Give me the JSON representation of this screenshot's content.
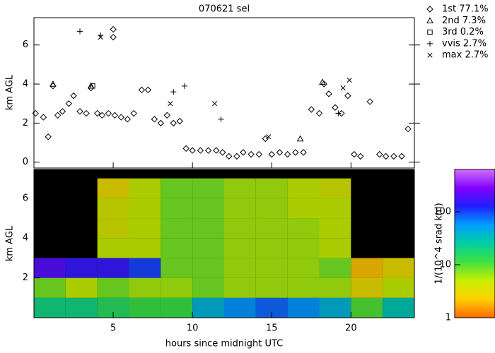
{
  "chart_data": [
    {
      "type": "scatter",
      "title": "070621 sel",
      "ylabel": "km AGL",
      "xlim": [
        0,
        24
      ],
      "xticks": [
        5,
        10,
        15,
        20
      ],
      "ylim": [
        -0.3,
        7.4
      ],
      "yticks": [
        0,
        2,
        4,
        6
      ],
      "series": [
        {
          "name": "1st 77.1%",
          "marker": "diamond",
          "color": "#000000",
          "x": [
            0.1,
            0.6,
            0.9,
            1.2,
            1.5,
            1.8,
            2.2,
            2.5,
            2.9,
            3.3,
            3.6,
            4.0,
            4.3,
            4.7,
            5.0,
            5.0,
            5.1,
            5.5,
            5.9,
            6.3,
            6.8,
            7.2,
            7.6,
            8.0,
            8.4,
            8.8,
            9.2,
            9.6,
            10.0,
            10.5,
            11.0,
            11.5,
            11.9,
            12.3,
            12.8,
            13.2,
            13.7,
            14.2,
            14.6,
            15.0,
            15.5,
            16.0,
            16.5,
            17.0,
            17.5,
            18.0,
            18.3,
            18.6,
            19.0,
            19.4,
            19.8,
            20.2,
            20.6,
            21.2,
            21.8,
            22.2,
            22.7,
            23.2,
            23.6
          ],
          "values": [
            2.5,
            2.3,
            1.3,
            3.9,
            2.4,
            2.6,
            3.0,
            3.4,
            2.6,
            2.5,
            3.8,
            2.5,
            2.4,
            2.5,
            6.8,
            6.4,
            2.4,
            2.3,
            2.2,
            2.5,
            3.7,
            3.7,
            2.2,
            2.0,
            2.4,
            2.0,
            2.1,
            0.7,
            0.6,
            0.6,
            0.6,
            0.6,
            0.5,
            0.3,
            0.3,
            0.5,
            0.4,
            0.4,
            1.2,
            0.4,
            0.5,
            0.4,
            0.5,
            0.5,
            2.7,
            2.5,
            4.0,
            3.5,
            2.8,
            2.5,
            3.4,
            0.4,
            0.3,
            3.1,
            0.4,
            0.3,
            0.3,
            0.3,
            1.7
          ]
        },
        {
          "name": "2nd 7.3%",
          "marker": "triangle",
          "color": "#000000",
          "x": [
            1.2,
            3.6,
            16.8,
            18.2
          ],
          "values": [
            4.0,
            3.9,
            1.2,
            4.1
          ]
        },
        {
          "name": "3rd 0.2%",
          "marker": "square",
          "color": "#000000",
          "x": [
            3.7
          ],
          "values": [
            3.9
          ]
        },
        {
          "name": "vvis 2.7%",
          "marker": "plus",
          "color": "#000000",
          "x": [
            2.9,
            4.2,
            8.8,
            9.5,
            11.8,
            19.2
          ],
          "values": [
            6.7,
            6.5,
            3.6,
            3.9,
            2.2,
            2.5
          ]
        },
        {
          "name": "max 2.7%",
          "marker": "cross",
          "color": "#000000",
          "x": [
            4.2,
            8.6,
            11.4,
            14.8,
            19.5,
            19.9
          ],
          "values": [
            6.4,
            3.0,
            3.0,
            1.3,
            3.8,
            4.2
          ]
        }
      ]
    },
    {
      "type": "heatmap",
      "ylabel": "km AGL",
      "xlabel": "hours since midnight UTC",
      "xlim": [
        0,
        24
      ],
      "xticks": [
        5,
        10,
        15,
        20
      ],
      "ylim": [
        0,
        7.45
      ],
      "yticks": [
        2,
        4,
        6
      ],
      "x_bins": [
        0,
        2,
        4,
        6,
        8,
        10,
        12,
        14,
        16,
        18,
        20,
        22,
        24
      ],
      "y_bins": [
        0,
        1,
        2,
        3,
        4,
        5,
        6,
        7
      ],
      "z": [
        [
          20,
          20,
          15,
          12,
          12,
          40,
          60,
          80,
          60,
          40,
          10,
          30
        ],
        [
          8,
          5,
          8,
          6,
          6,
          8,
          6,
          6,
          6,
          6,
          3,
          5
        ],
        [
          200,
          150,
          150,
          100,
          8,
          8,
          6,
          6,
          6,
          8,
          2,
          3
        ],
        [
          null,
          null,
          5,
          5,
          8,
          8,
          6,
          6,
          6,
          5,
          null,
          null
        ],
        [
          null,
          null,
          4,
          5,
          8,
          8,
          6,
          6,
          6,
          5,
          null,
          null
        ],
        [
          null,
          null,
          4,
          5,
          8,
          8,
          6,
          6,
          5,
          5,
          null,
          null
        ],
        [
          null,
          null,
          3,
          5,
          8,
          8,
          6,
          6,
          5,
          4,
          null,
          null
        ]
      ],
      "zlabel": "1/(10^4 srad km)",
      "zlim": [
        1,
        630
      ],
      "zticks": [
        1,
        10,
        100
      ],
      "zscale": "log",
      "colormap": [
        "#ff6a00",
        "#ffd000",
        "#c8f000",
        "#40e040",
        "#00d0a0",
        "#00a0ff",
        "#2020ff",
        "#8000ff",
        "#d070ff"
      ]
    }
  ]
}
